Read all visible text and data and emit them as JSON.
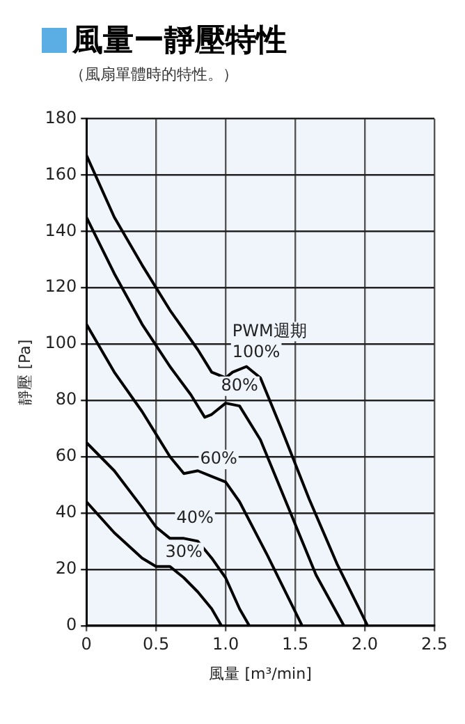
{
  "chart_data": {
    "type": "line",
    "title": "風量ー靜壓特性",
    "subtitle": "（風扇單體時的特性。）",
    "xlabel": "風量 [m³/min]",
    "ylabel": "靜壓 [Pa]",
    "xlim": [
      0,
      2.5
    ],
    "xticks": [
      0,
      0.5,
      {
        "value": 1,
        "label": "1.0"
      },
      1.5,
      {
        "value": 2,
        "label": "2.0"
      },
      2.5
    ],
    "ylim": [
      0,
      180
    ],
    "yticks": [
      0,
      20,
      40,
      60,
      80,
      100,
      120,
      140,
      160,
      180
    ],
    "grid": true,
    "marker": "none",
    "line_style": "solid",
    "series": [
      {
        "color": "#000000",
        "x": [
          0,
          0.2,
          0.4,
          0.6,
          0.8,
          0.9,
          1.0,
          1.05,
          1.15,
          1.25,
          1.4,
          1.6,
          1.8,
          1.95,
          2.02
        ],
        "values": [
          167,
          145,
          128,
          112,
          98,
          90,
          88,
          90,
          92,
          88,
          70,
          45,
          22,
          7,
          0
        ]
      },
      {
        "color": "#000000",
        "x": [
          0,
          0.2,
          0.4,
          0.6,
          0.75,
          0.85,
          0.9,
          1.0,
          1.1,
          1.25,
          1.45,
          1.65,
          1.85
        ],
        "values": [
          145,
          125,
          107,
          92,
          82,
          74,
          75,
          79,
          78,
          66,
          42,
          18,
          0
        ]
      },
      {
        "color": "#000000",
        "x": [
          0,
          0.2,
          0.4,
          0.5,
          0.6,
          0.7,
          0.8,
          0.9,
          1.0,
          1.1,
          1.3,
          1.45,
          1.55
        ],
        "values": [
          107,
          90,
          76,
          68,
          60,
          54,
          55,
          53,
          51,
          44,
          25,
          10,
          0
        ]
      },
      {
        "color": "#000000",
        "x": [
          0,
          0.2,
          0.4,
          0.5,
          0.6,
          0.7,
          0.8,
          0.9,
          1.0,
          1.1,
          1.17
        ],
        "values": [
          65,
          55,
          42,
          35,
          31,
          31,
          30,
          24,
          17,
          6,
          0
        ]
      },
      {
        "color": "#000000",
        "x": [
          0,
          0.2,
          0.4,
          0.5,
          0.6,
          0.7,
          0.8,
          0.9,
          0.97
        ],
        "values": [
          44,
          33,
          24,
          21,
          21,
          17,
          12,
          6,
          0
        ]
      }
    ],
    "annotations": [
      "PWM週期",
      {
        "text": "100%",
        "x": 1.22,
        "y": 97
      },
      {
        "text": "80%",
        "x": 1.1,
        "y": 85
      },
      {
        "text": "60%",
        "x": 0.95,
        "y": 59
      },
      {
        "text": "40%",
        "x": 0.78,
        "y": 38
      },
      {
        "text": "30%",
        "x": 0.7,
        "y": 26
      }
    ]
  }
}
